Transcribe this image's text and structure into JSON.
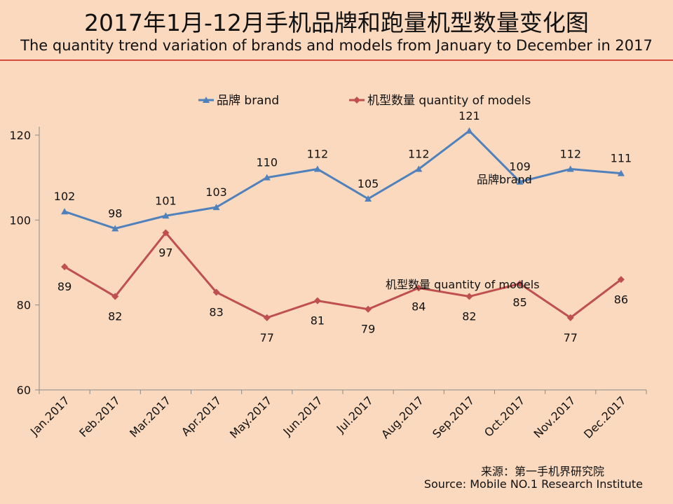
{
  "title_zh": "2017年1月-12月手机品牌和跑量机型数量变化图",
  "title_en": "The quantity trend variation of brands and models from January to December in 2017",
  "source_zh": "来源：第一手机界研究院",
  "source_en": "Source: Mobile NO.1 Research Institute",
  "colors": {
    "background": "#fad9be",
    "brand": "#4f81bd",
    "models": "#c0504d",
    "accent_line": "#d94a3a"
  },
  "chart_data": {
    "type": "line",
    "categories": [
      "Jan.2017",
      "Feb.2017",
      "Mar.2017",
      "Apr.2017",
      "May.2017",
      "Jun.2017",
      "Jul.2017",
      "Aug.2017",
      "Sep.2017",
      "Oct.2017",
      "Nov.2017",
      "Dec.2017"
    ],
    "ylim": [
      60,
      120
    ],
    "yticks": [
      60,
      80,
      100,
      120
    ],
    "grid": false,
    "legend_position": "top",
    "series": [
      {
        "name": "品牌 brand",
        "marker": "triangle",
        "annotation": "品牌brand",
        "values": [
          102,
          98,
          101,
          103,
          110,
          112,
          105,
          112,
          121,
          109,
          112,
          111
        ]
      },
      {
        "name": "机型数量 quantity of models",
        "marker": "diamond",
        "annotation": "机型数量 quantity of models",
        "values": [
          89,
          82,
          97,
          83,
          77,
          81,
          79,
          84,
          82,
          85,
          77,
          86
        ]
      }
    ]
  }
}
